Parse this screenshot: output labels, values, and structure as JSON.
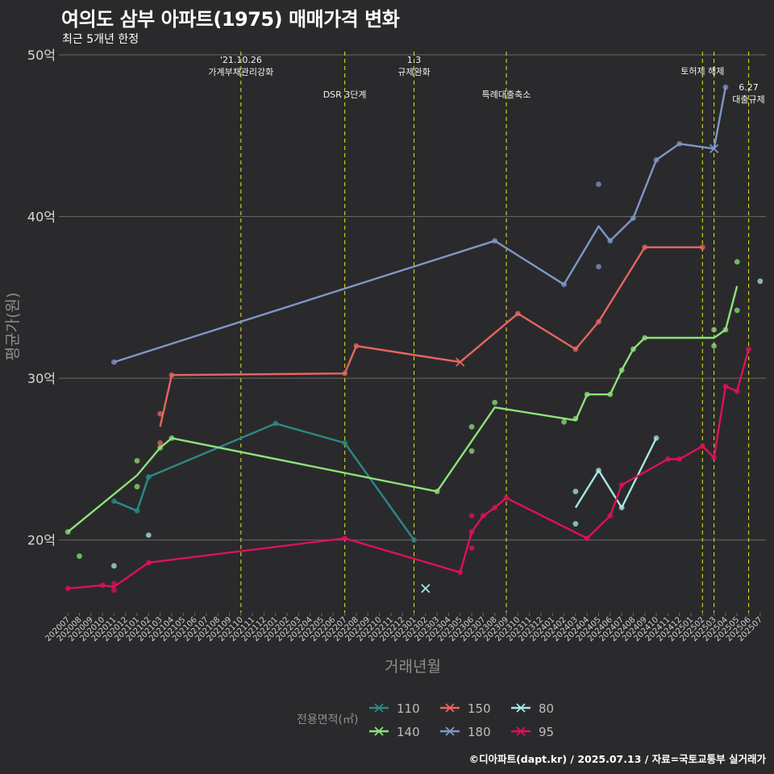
{
  "title": "여의도 삼부 아파트(1975) 매매가격 변화",
  "subtitle": "최근 5개년 한정",
  "caption": "©디아파트(dapt.kr) / 2025.07.13 / 자료=국토교통부 실거래가",
  "chart_data": {
    "type": "line",
    "xlabel": "거래년월",
    "ylabel": "평균가(원)",
    "ylim": [
      15.5,
      50.5
    ],
    "yticks": [
      20,
      30,
      40,
      50
    ],
    "ytick_labels": [
      "20억",
      "30억",
      "40억",
      "50억"
    ],
    "x_months": [
      "202007",
      "202008",
      "202009",
      "202010",
      "202011",
      "202012",
      "202101",
      "202102",
      "202103",
      "202104",
      "202105",
      "202106",
      "202107",
      "202108",
      "202109",
      "202110",
      "202111",
      "202112",
      "202201",
      "202202",
      "202203",
      "202204",
      "202205",
      "202206",
      "202207",
      "202208",
      "202209",
      "202210",
      "202211",
      "202212",
      "202301",
      "202302",
      "202303",
      "202304",
      "202305",
      "202306",
      "202307",
      "202308",
      "202309",
      "202310",
      "202311",
      "202312",
      "202401",
      "202402",
      "202403",
      "202404",
      "202405",
      "202406",
      "202407",
      "202408",
      "202409",
      "202410",
      "202411",
      "202412",
      "202501",
      "202502",
      "202503",
      "202504",
      "202505",
      "202506",
      "202507"
    ],
    "legend_title": "전용면적(㎡)",
    "legend_position": "bottom",
    "events": [
      {
        "month": "202110",
        "label": "'21.10.26\n가계부채관리강화",
        "level": 1
      },
      {
        "month": "202207",
        "label": "DSR 3단계",
        "level": 2
      },
      {
        "month": "202301",
        "label": "1.3\n규제완화",
        "level": 1
      },
      {
        "month": "202309",
        "label": "특례대출축소",
        "level": 2
      },
      {
        "month": "202502",
        "label": "토허제 해제",
        "level": 1
      },
      {
        "month": "202503",
        "label": "",
        "level": 1
      },
      {
        "month": "202506",
        "label": "6.27\n대출규제",
        "level": 3
      }
    ],
    "series": [
      {
        "name": "110",
        "color": "#2a8a87",
        "line": [
          [
            "202011",
            22.4
          ],
          [
            "202101",
            21.8
          ],
          [
            "202102",
            23.9
          ],
          [
            "202201",
            27.2
          ],
          [
            "202207",
            26.0
          ],
          [
            "202301",
            20.0
          ]
        ],
        "points": [
          [
            "202011",
            22.4
          ],
          [
            "202101",
            21.8
          ],
          [
            "202102",
            23.9
          ],
          [
            "202201",
            27.2
          ],
          [
            "202207",
            26.0
          ],
          [
            "202301",
            20.0
          ]
        ],
        "crosses": []
      },
      {
        "name": "140",
        "color": "#8ee27a",
        "line": [
          [
            "202007",
            20.5
          ],
          [
            "202101",
            24.0
          ],
          [
            "202103",
            25.7
          ],
          [
            "202104",
            26.3
          ],
          [
            "202303",
            23.0
          ],
          [
            "202308",
            28.2
          ],
          [
            "202403",
            27.4
          ],
          [
            "202404",
            29.0
          ],
          [
            "202406",
            29.0
          ],
          [
            "202407",
            30.5
          ],
          [
            "202408",
            31.8
          ],
          [
            "202409",
            32.5
          ],
          [
            "202503",
            32.5
          ],
          [
            "202504",
            33.0
          ],
          [
            "202505",
            35.7
          ]
        ],
        "points": [
          [
            "202007",
            20.5
          ],
          [
            "202008",
            19.0
          ],
          [
            "202101",
            24.9
          ],
          [
            "202101",
            23.3
          ],
          [
            "202103",
            25.7
          ],
          [
            "202104",
            26.3
          ],
          [
            "202303",
            23.0
          ],
          [
            "202306",
            27.0
          ],
          [
            "202306",
            25.5
          ],
          [
            "202308",
            28.5
          ],
          [
            "202402",
            27.3
          ],
          [
            "202403",
            27.5
          ],
          [
            "202404",
            29.0
          ],
          [
            "202406",
            29.0
          ],
          [
            "202407",
            30.5
          ],
          [
            "202408",
            31.8
          ],
          [
            "202409",
            32.5
          ],
          [
            "202503",
            33.0
          ],
          [
            "202503",
            32.0
          ],
          [
            "202504",
            33.0
          ],
          [
            "202505",
            37.2
          ],
          [
            "202505",
            34.2
          ]
        ],
        "crosses": []
      },
      {
        "name": "150",
        "color": "#e86560",
        "line": [
          [
            "202103",
            27.0
          ],
          [
            "202104",
            30.2
          ],
          [
            "202207",
            30.3
          ],
          [
            "202208",
            32.0
          ],
          [
            "202305",
            31.0
          ],
          [
            "202310",
            34.0
          ],
          [
            "202403",
            31.8
          ],
          [
            "202405",
            33.5
          ],
          [
            "202409",
            38.1
          ],
          [
            "202502",
            38.1
          ]
        ],
        "points": [
          [
            "202103",
            27.8
          ],
          [
            "202103",
            26.0
          ],
          [
            "202104",
            30.2
          ],
          [
            "202207",
            30.3
          ],
          [
            "202208",
            32.0
          ],
          [
            "202310",
            34.0
          ],
          [
            "202403",
            31.8
          ],
          [
            "202405",
            33.5
          ],
          [
            "202409",
            38.1
          ],
          [
            "202502",
            38.1
          ]
        ],
        "crosses": [
          [
            "202305",
            31.0
          ]
        ]
      },
      {
        "name": "180",
        "color": "#7f97c8",
        "line": [
          [
            "202011",
            31.0
          ],
          [
            "202308",
            38.5
          ],
          [
            "202402",
            35.8
          ],
          [
            "202405",
            39.4
          ],
          [
            "202406",
            38.5
          ],
          [
            "202408",
            39.9
          ],
          [
            "202410",
            43.5
          ],
          [
            "202412",
            44.5
          ],
          [
            "202503",
            44.2
          ],
          [
            "202504",
            48.0
          ]
        ],
        "points": [
          [
            "202011",
            31.0
          ],
          [
            "202308",
            38.5
          ],
          [
            "202402",
            35.8
          ],
          [
            "202405",
            42.0
          ],
          [
            "202405",
            36.9
          ],
          [
            "202406",
            38.5
          ],
          [
            "202408",
            39.9
          ],
          [
            "202410",
            43.5
          ],
          [
            "202412",
            44.5
          ],
          [
            "202504",
            48.0
          ]
        ],
        "crosses": [
          [
            "202503",
            44.2
          ]
        ]
      },
      {
        "name": "80",
        "color": "#a8e6e8",
        "line": [
          [
            "202403",
            22.0
          ],
          [
            "202405",
            24.3
          ],
          [
            "202407",
            22.0
          ],
          [
            "202410",
            26.3
          ]
        ],
        "points": [
          [
            "202011",
            18.4
          ],
          [
            "202102",
            20.3
          ],
          [
            "202403",
            23.0
          ],
          [
            "202403",
            21.0
          ],
          [
            "202405",
            24.3
          ],
          [
            "202407",
            22.0
          ],
          [
            "202410",
            26.3
          ],
          [
            "202507",
            36.0
          ]
        ],
        "crosses": [
          [
            "202302",
            17.0
          ]
        ]
      },
      {
        "name": "95",
        "color": "#e0105c",
        "line": [
          [
            "202007",
            17.0
          ],
          [
            "202010",
            17.2
          ],
          [
            "202011",
            17.1
          ],
          [
            "202102",
            18.6
          ],
          [
            "202207",
            20.1
          ],
          [
            "202305",
            18.0
          ],
          [
            "202306",
            20.5
          ],
          [
            "202307",
            21.5
          ],
          [
            "202308",
            22.0
          ],
          [
            "202309",
            22.6
          ],
          [
            "202404",
            20.1
          ],
          [
            "202406",
            21.5
          ],
          [
            "202407",
            23.4
          ],
          [
            "202411",
            25.0
          ],
          [
            "202412",
            25.0
          ],
          [
            "202502",
            25.8
          ],
          [
            "202503",
            25.1
          ],
          [
            "202504",
            29.5
          ],
          [
            "202505",
            29.2
          ],
          [
            "202506",
            31.8
          ]
        ],
        "points": [
          [
            "202007",
            17.0
          ],
          [
            "202010",
            17.2
          ],
          [
            "202011",
            17.3
          ],
          [
            "202011",
            16.9
          ],
          [
            "202102",
            18.6
          ],
          [
            "202207",
            20.1
          ],
          [
            "202305",
            18.0
          ],
          [
            "202306",
            21.5
          ],
          [
            "202306",
            19.5
          ],
          [
            "202306",
            20.5
          ],
          [
            "202307",
            21.5
          ],
          [
            "202308",
            22.0
          ],
          [
            "202309",
            22.6
          ],
          [
            "202404",
            20.1
          ],
          [
            "202406",
            21.5
          ],
          [
            "202407",
            23.4
          ],
          [
            "202411",
            25.0
          ],
          [
            "202412",
            25.0
          ],
          [
            "202502",
            25.8
          ],
          [
            "202503",
            25.1
          ],
          [
            "202504",
            29.5
          ],
          [
            "202505",
            29.2
          ],
          [
            "202506",
            31.8
          ]
        ],
        "crosses": []
      }
    ]
  }
}
